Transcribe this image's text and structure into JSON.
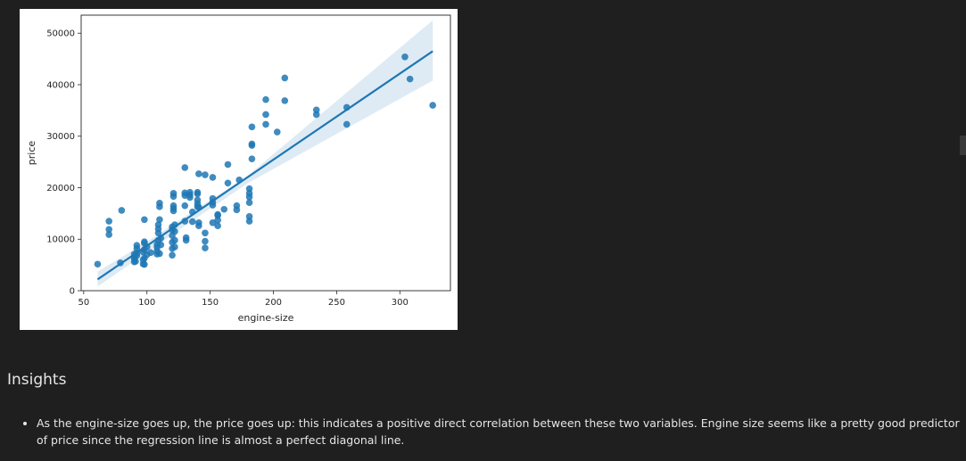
{
  "insights": {
    "heading": "Insights",
    "bullets": [
      "As the engine-size goes up, the price goes up: this indicates a positive direct correlation between these two variables. Engine size seems like a pretty good predictor of price since the regression line is almost a perfect diagonal line."
    ]
  },
  "chart_data": {
    "type": "scatter",
    "xlabel": "engine-size",
    "ylabel": "price",
    "xlim": [
      48,
      340
    ],
    "ylim": [
      0,
      53500
    ],
    "xticks": [
      50,
      100,
      150,
      200,
      250,
      300
    ],
    "yticks": [
      0,
      10000,
      20000,
      30000,
      40000,
      50000
    ],
    "point_color": "#1f77b4",
    "regression_line": {
      "x": [
        61,
        326
      ],
      "y": [
        2200,
        46500
      ],
      "ci_band": {
        "x": [
          61,
          100,
          130,
          180,
          326
        ],
        "lower": [
          800,
          7400,
          12600,
          20900,
          40800
        ],
        "upper": [
          3700,
          9500,
          14400,
          22400,
          52500
        ]
      }
    },
    "points": [
      [
        61,
        5151
      ],
      [
        70,
        13500
      ],
      [
        70,
        11900
      ],
      [
        70,
        10900
      ],
      [
        79,
        5400
      ],
      [
        80,
        15600
      ],
      [
        90,
        6500
      ],
      [
        90,
        7100
      ],
      [
        90,
        5600
      ],
      [
        90,
        6200
      ],
      [
        91,
        5700
      ],
      [
        92,
        6800
      ],
      [
        92,
        7300
      ],
      [
        92,
        8200
      ],
      [
        92,
        8800
      ],
      [
        97,
        5200
      ],
      [
        97,
        7500
      ],
      [
        97,
        6000
      ],
      [
        98,
        5100
      ],
      [
        98,
        6300
      ],
      [
        98,
        8000
      ],
      [
        98,
        9200
      ],
      [
        98,
        9500
      ],
      [
        98,
        13800
      ],
      [
        100,
        7000
      ],
      [
        100,
        8500
      ],
      [
        103,
        7400
      ],
      [
        108,
        7100
      ],
      [
        108,
        7700
      ],
      [
        108,
        8400
      ],
      [
        108,
        9000
      ],
      [
        109,
        9800
      ],
      [
        109,
        11200
      ],
      [
        109,
        12000
      ],
      [
        109,
        12800
      ],
      [
        110,
        13800
      ],
      [
        110,
        16300
      ],
      [
        110,
        17000
      ],
      [
        110,
        7200
      ],
      [
        111,
        8900
      ],
      [
        111,
        10200
      ],
      [
        120,
        6900
      ],
      [
        120,
        8200
      ],
      [
        120,
        9400
      ],
      [
        120,
        10700
      ],
      [
        120,
        11800
      ],
      [
        120,
        12400
      ],
      [
        121,
        15500
      ],
      [
        121,
        16000
      ],
      [
        121,
        16500
      ],
      [
        121,
        18300
      ],
      [
        121,
        18900
      ],
      [
        122,
        8500
      ],
      [
        122,
        9800
      ],
      [
        122,
        11500
      ],
      [
        122,
        12800
      ],
      [
        130,
        16500
      ],
      [
        130,
        18500
      ],
      [
        130,
        19000
      ],
      [
        130,
        13500
      ],
      [
        130,
        23900
      ],
      [
        131,
        9800
      ],
      [
        131,
        10300
      ],
      [
        134,
        18100
      ],
      [
        134,
        18600
      ],
      [
        134,
        19100
      ],
      [
        136,
        13400
      ],
      [
        136,
        15300
      ],
      [
        140,
        16300
      ],
      [
        140,
        16900
      ],
      [
        140,
        17600
      ],
      [
        140,
        18800
      ],
      [
        140,
        19100
      ],
      [
        141,
        12600
      ],
      [
        141,
        13200
      ],
      [
        141,
        22700
      ],
      [
        141,
        16200
      ],
      [
        146,
        8300
      ],
      [
        146,
        9600
      ],
      [
        146,
        11200
      ],
      [
        146,
        22500
      ],
      [
        152,
        13200
      ],
      [
        152,
        16600
      ],
      [
        152,
        17200
      ],
      [
        152,
        17900
      ],
      [
        152,
        22000
      ],
      [
        156,
        12600
      ],
      [
        156,
        13700
      ],
      [
        156,
        14600
      ],
      [
        156,
        14800
      ],
      [
        161,
        15800
      ],
      [
        164,
        20900
      ],
      [
        164,
        24500
      ],
      [
        171,
        15700
      ],
      [
        171,
        16500
      ],
      [
        173,
        21500
      ],
      [
        181,
        13500
      ],
      [
        181,
        14400
      ],
      [
        181,
        17100
      ],
      [
        181,
        18200
      ],
      [
        181,
        18900
      ],
      [
        181,
        19800
      ],
      [
        183,
        25600
      ],
      [
        183,
        28200
      ],
      [
        183,
        28500
      ],
      [
        183,
        31800
      ],
      [
        194,
        32300
      ],
      [
        194,
        34200
      ],
      [
        194,
        37100
      ],
      [
        203,
        30800
      ],
      [
        209,
        36900
      ],
      [
        209,
        41300
      ],
      [
        234,
        34200
      ],
      [
        234,
        35100
      ],
      [
        258,
        32300
      ],
      [
        258,
        35600
      ],
      [
        304,
        45400
      ],
      [
        308,
        41100
      ],
      [
        326,
        36000
      ]
    ]
  }
}
